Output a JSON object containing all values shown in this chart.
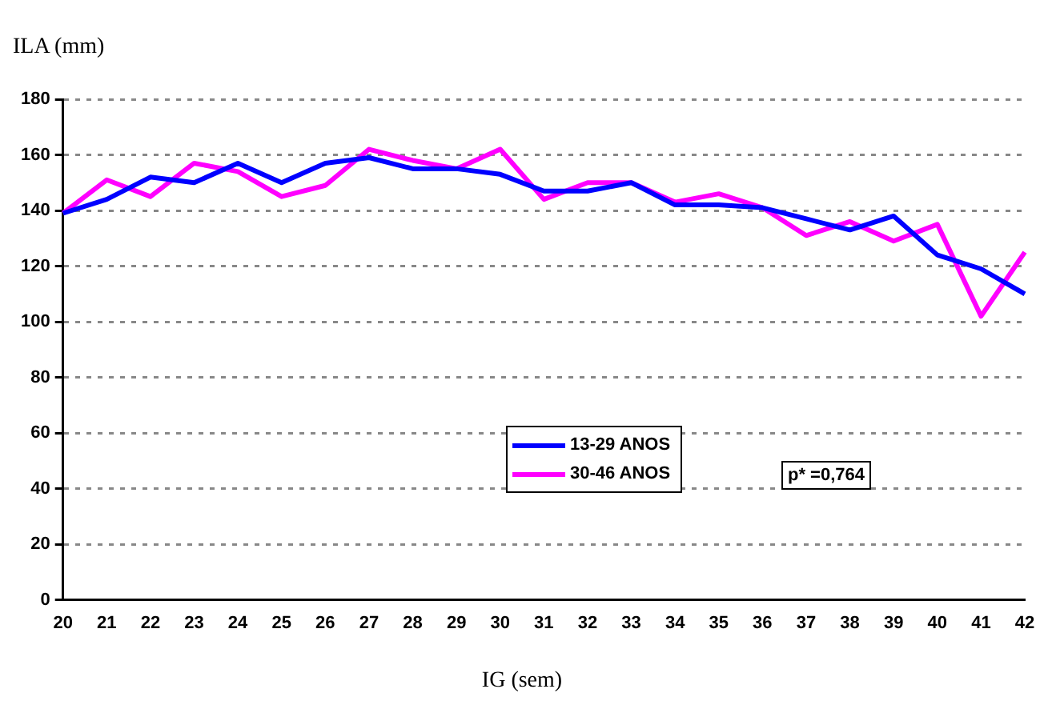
{
  "chart_data": {
    "type": "line",
    "ylabel": "ILA (mm)",
    "xlabel": "IG (sem)",
    "categories": [
      "20",
      "21",
      "22",
      "23",
      "24",
      "25",
      "26",
      "27",
      "28",
      "29",
      "30",
      "31",
      "32",
      "33",
      "34",
      "35",
      "36",
      "37",
      "38",
      "39",
      "40",
      "41",
      "42"
    ],
    "series": [
      {
        "name": "13-29 ANOS",
        "color": "#0000ff",
        "values": [
          139,
          144,
          152,
          150,
          157,
          150,
          157,
          159,
          155,
          155,
          153,
          147,
          147,
          150,
          142,
          142,
          141,
          137,
          133,
          138,
          124,
          119,
          110
        ]
      },
      {
        "name": "30-46 ANOS",
        "color": "#ff00ff",
        "values": [
          139,
          151,
          145,
          157,
          154,
          145,
          149,
          162,
          158,
          155,
          162,
          144,
          150,
          150,
          143,
          146,
          141,
          131,
          136,
          129,
          135,
          102,
          125
        ]
      }
    ],
    "ylim": [
      0,
      180
    ],
    "yticks": [
      0,
      20,
      40,
      60,
      80,
      100,
      120,
      140,
      160,
      180
    ],
    "grid": "y",
    "legend": "center",
    "marker": "none",
    "line_style": "solid",
    "annotations": [
      "p* =0,764"
    ]
  }
}
